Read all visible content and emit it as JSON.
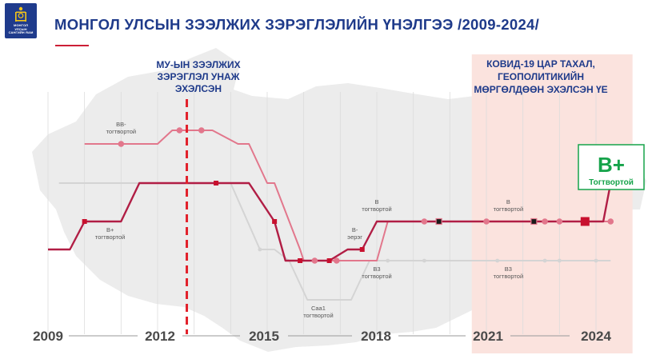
{
  "header": {
    "title": "МОНГОЛ УЛСЫН ЗЭЭЛЖИХ ЗЭРЭГЛЭЛИЙН ҮНЭЛГЭЭ /2009-2024/",
    "logo_lines": [
      "МОНГОЛ",
      "УЛСЫН",
      "САНГИЙН ЯАМ"
    ]
  },
  "colors": {
    "dark_red": "#b11e45",
    "pink": "#e2778c",
    "light_gray": "#d4d4d4",
    "navy": "#1e3a8a",
    "accent_red": "#e2202a",
    "green": "#16a34a",
    "covid_bg": "#fbe3de"
  },
  "chart_data": {
    "type": "line",
    "x_ticks": [
      "2009",
      "2012",
      "2015",
      "2018",
      "2021",
      "2024"
    ],
    "y_scale": [
      "Caa1",
      "B3",
      "B-",
      "B",
      "B+",
      "BB-"
    ],
    "series": [
      {
        "id": "dark",
        "color": "#b11e45",
        "points": [
          [
            2009,
            "B-"
          ],
          [
            2009.6,
            "B-"
          ],
          [
            2010,
            "B"
          ],
          [
            2011,
            "B"
          ],
          [
            2011.5,
            "B+"
          ],
          [
            2013.4,
            "B+"
          ],
          [
            2013.8,
            "B+"
          ],
          [
            2014.5,
            "B+"
          ],
          [
            2015.2,
            "B"
          ],
          [
            2015.5,
            "B3"
          ],
          [
            2016.7,
            "B3"
          ],
          [
            2017.2,
            "B-"
          ],
          [
            2017.6,
            "B-"
          ],
          [
            2018,
            "B"
          ],
          [
            2024.2,
            "B"
          ],
          [
            2024.4,
            "B+"
          ]
        ]
      },
      {
        "id": "pink",
        "color": "#e2778c",
        "points": [
          [
            2010,
            "BB-"
          ],
          [
            2012,
            "BB-"
          ],
          [
            2012.4,
            "BB"
          ],
          [
            2013.5,
            "BB"
          ],
          [
            2014.2,
            "BB-"
          ],
          [
            2014.5,
            "BB-"
          ],
          [
            2015,
            "B+"
          ],
          [
            2015.2,
            "B+"
          ],
          [
            2015.9,
            "B-"
          ],
          [
            2016,
            "B3"
          ],
          [
            2018,
            "B3"
          ],
          [
            2018.3,
            "B"
          ],
          [
            2024.4,
            "B"
          ]
        ]
      },
      {
        "id": "gray",
        "color": "#d4d4d4",
        "points": [
          [
            2009.3,
            "B+"
          ],
          [
            2009.6,
            "B+"
          ],
          [
            2010.2,
            "B+"
          ],
          [
            2013,
            "B+"
          ],
          [
            2013.5,
            "B+"
          ],
          [
            2014,
            "B+"
          ],
          [
            2014.8,
            "B-"
          ],
          [
            2015.2,
            "B-"
          ],
          [
            2015.6,
            "B3"
          ],
          [
            2016.1,
            "Caa1"
          ],
          [
            2017.3,
            "Caa1"
          ],
          [
            2017.8,
            "B3"
          ],
          [
            2024.4,
            "B3"
          ]
        ]
      }
    ],
    "markers": [
      {
        "series": "pink",
        "shape": "circle",
        "x": 2011,
        "y": "BB-"
      },
      {
        "series": "pink",
        "shape": "circle",
        "x": 2012.6,
        "y": "BB"
      },
      {
        "series": "pink",
        "shape": "circle",
        "x": 2013.2,
        "y": "BB"
      },
      {
        "series": "pink",
        "shape": "circle",
        "x": 2016.3,
        "y": "B3"
      },
      {
        "series": "pink",
        "shape": "circle",
        "x": 2016.9,
        "y": "B3"
      },
      {
        "series": "pink",
        "shape": "circle",
        "x": 2019.3,
        "y": "B"
      },
      {
        "series": "pink",
        "shape": "circle",
        "x": 2021,
        "y": "B"
      },
      {
        "series": "pink",
        "shape": "circle",
        "x": 2022.6,
        "y": "B"
      },
      {
        "series": "pink",
        "shape": "circle",
        "x": 2023,
        "y": "B"
      },
      {
        "series": "pink",
        "shape": "circle",
        "x": 2024.4,
        "y": "B"
      },
      {
        "series": "dark",
        "shape": "square",
        "x": 2010,
        "y": "B"
      },
      {
        "series": "dark",
        "shape": "square",
        "x": 2013.6,
        "y": "B+"
      },
      {
        "series": "dark",
        "shape": "square",
        "x": 2015.2,
        "y": "B"
      },
      {
        "series": "dark",
        "shape": "square",
        "x": 2015.9,
        "y": "B3"
      },
      {
        "series": "dark",
        "shape": "square",
        "x": 2016.7,
        "y": "B3"
      },
      {
        "series": "dark",
        "shape": "square",
        "x": 2017.6,
        "y": "B-"
      },
      {
        "series": "dark",
        "shape": "square",
        "x": 2019.7,
        "y": "B"
      },
      {
        "series": "dark",
        "shape": "square",
        "x": 2022.3,
        "y": "B"
      },
      {
        "series": "dark",
        "shape": "square",
        "x": 2023.7,
        "y": "B",
        "big": true
      },
      {
        "series": "gray",
        "shape": "circle",
        "x": 2014.8,
        "y": "B-"
      },
      {
        "series": "gray",
        "shape": "circle",
        "x": 2018.3,
        "y": "B3"
      },
      {
        "series": "gray",
        "shape": "circle",
        "x": 2019.3,
        "y": "B3"
      },
      {
        "series": "gray",
        "shape": "circle",
        "x": 2021.3,
        "y": "B3"
      },
      {
        "series": "gray",
        "shape": "circle",
        "x": 2022.6,
        "y": "B3"
      },
      {
        "series": "gray",
        "shape": "circle",
        "x": 2023,
        "y": "B3"
      },
      {
        "series": "gray",
        "shape": "circle",
        "x": 2024,
        "y": "B3"
      }
    ],
    "rating_labels": [
      {
        "x": 2011,
        "y": "BB-",
        "rating": "BB-",
        "outlook": "тогтвортой",
        "pos": "above"
      },
      {
        "x": 2010.7,
        "y": "B",
        "rating": "B+",
        "outlook": "тогтвортой",
        "pos": "below"
      },
      {
        "x": 2016.4,
        "y": "Caa1",
        "rating": "Caa1",
        "outlook": "тогтвортой",
        "pos": "below"
      },
      {
        "x": 2017.4,
        "y": "B-",
        "rating": "B-",
        "outlook": "эерэг",
        "pos": "above"
      },
      {
        "x": 2018,
        "y": "B",
        "rating": "B",
        "outlook": "тогтвортой",
        "pos": "above"
      },
      {
        "x": 2018,
        "y": "B3",
        "rating": "B3",
        "outlook": "тогтвортой",
        "pos": "below"
      },
      {
        "x": 2021.6,
        "y": "B",
        "rating": "B",
        "outlook": "тогтвортой",
        "pos": "above"
      },
      {
        "x": 2021.6,
        "y": "B3",
        "rating": "B3",
        "outlook": "тогтвортой",
        "pos": "below"
      }
    ],
    "annotations": {
      "rating_drop": {
        "lines": [
          "МУ-ЫН ЗЭЭЛЖИХ",
          "ЗЭРЭГЛЭЛ УНАЖ",
          "ЭХЭЛСЭН"
        ],
        "x": 2012.8
      },
      "covid": {
        "lines": [
          "КОВИД-19  ЦАР ТАХАЛ,",
          "ГЕОПОЛИТИКИЙН",
          "МӨРГӨЛДӨӨН ЭХЭЛСЭН ҮЕ"
        ],
        "x_start": 2020.6,
        "x_end": 2025
      },
      "current": {
        "rating": "B+",
        "outlook": "Тогтвортой"
      }
    }
  }
}
